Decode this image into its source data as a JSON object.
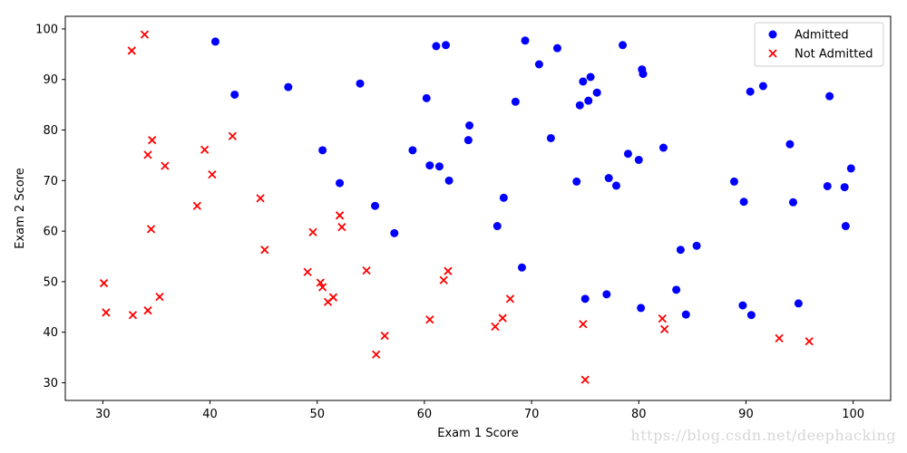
{
  "chart_data": {
    "type": "scatter",
    "xlabel": "Exam 1 Score",
    "ylabel": "Exam 2 Score",
    "xlim": [
      26.5,
      103.5
    ],
    "ylim": [
      26.5,
      102.5
    ],
    "xticks": [
      30,
      40,
      50,
      60,
      70,
      80,
      90,
      100
    ],
    "yticks": [
      30,
      40,
      50,
      60,
      70,
      80,
      90,
      100
    ],
    "grid": false,
    "legend_position": "top-right",
    "series": [
      {
        "name": "Admitted",
        "marker": "circle",
        "color": "#0000ff",
        "points": [
          [
            40.5,
            97.5
          ],
          [
            42.3,
            87.0
          ],
          [
            47.3,
            88.5
          ],
          [
            50.5,
            76.0
          ],
          [
            52.1,
            69.5
          ],
          [
            54.0,
            89.2
          ],
          [
            55.4,
            65.0
          ],
          [
            57.2,
            59.6
          ],
          [
            58.9,
            76.0
          ],
          [
            60.2,
            86.3
          ],
          [
            60.5,
            73.0
          ],
          [
            61.1,
            96.6
          ],
          [
            61.4,
            72.8
          ],
          [
            62.0,
            96.8
          ],
          [
            62.3,
            70.0
          ],
          [
            64.1,
            78.0
          ],
          [
            64.2,
            80.9
          ],
          [
            66.8,
            61.0
          ],
          [
            67.4,
            66.6
          ],
          [
            68.5,
            85.6
          ],
          [
            69.1,
            52.8
          ],
          [
            69.4,
            97.7
          ],
          [
            70.7,
            93.0
          ],
          [
            71.8,
            78.4
          ],
          [
            72.4,
            96.2
          ],
          [
            74.2,
            69.8
          ],
          [
            74.5,
            84.9
          ],
          [
            74.8,
            89.6
          ],
          [
            75.0,
            46.6
          ],
          [
            75.3,
            85.8
          ],
          [
            75.5,
            90.5
          ],
          [
            76.1,
            87.4
          ],
          [
            77.0,
            47.5
          ],
          [
            77.2,
            70.5
          ],
          [
            77.9,
            69.0
          ],
          [
            78.5,
            96.8
          ],
          [
            79.0,
            75.3
          ],
          [
            80.0,
            74.1
          ],
          [
            80.2,
            44.8
          ],
          [
            80.3,
            92.0
          ],
          [
            80.4,
            91.1
          ],
          [
            82.3,
            76.5
          ],
          [
            83.5,
            48.4
          ],
          [
            83.9,
            56.3
          ],
          [
            84.4,
            43.5
          ],
          [
            85.4,
            57.1
          ],
          [
            88.9,
            69.8
          ],
          [
            89.7,
            45.3
          ],
          [
            89.8,
            65.8
          ],
          [
            90.4,
            87.6
          ],
          [
            90.5,
            43.4
          ],
          [
            91.6,
            88.7
          ],
          [
            94.1,
            77.2
          ],
          [
            94.4,
            65.7
          ],
          [
            94.9,
            45.7
          ],
          [
            97.6,
            68.9
          ],
          [
            97.8,
            86.7
          ],
          [
            99.2,
            68.7
          ],
          [
            99.3,
            61.0
          ],
          [
            99.8,
            72.4
          ]
        ]
      },
      {
        "name": "Not Admitted",
        "marker": "x",
        "color": "#ff0000",
        "points": [
          [
            30.1,
            49.7
          ],
          [
            30.3,
            43.9
          ],
          [
            32.7,
            95.7
          ],
          [
            32.8,
            43.4
          ],
          [
            33.9,
            98.9
          ],
          [
            34.2,
            75.1
          ],
          [
            34.2,
            44.3
          ],
          [
            34.5,
            60.4
          ],
          [
            34.6,
            78.0
          ],
          [
            35.3,
            47.0
          ],
          [
            35.8,
            72.9
          ],
          [
            38.8,
            65.0
          ],
          [
            39.5,
            76.1
          ],
          [
            40.2,
            71.2
          ],
          [
            42.1,
            78.8
          ],
          [
            44.7,
            66.5
          ],
          [
            45.1,
            56.3
          ],
          [
            49.1,
            51.9
          ],
          [
            49.6,
            59.8
          ],
          [
            50.3,
            49.8
          ],
          [
            50.5,
            48.9
          ],
          [
            51.0,
            46.0
          ],
          [
            51.5,
            46.9
          ],
          [
            52.1,
            63.1
          ],
          [
            52.3,
            60.8
          ],
          [
            54.6,
            52.2
          ],
          [
            55.5,
            35.6
          ],
          [
            56.3,
            39.3
          ],
          [
            60.5,
            42.5
          ],
          [
            61.8,
            50.3
          ],
          [
            62.2,
            52.1
          ],
          [
            66.6,
            41.1
          ],
          [
            67.3,
            42.8
          ],
          [
            68.0,
            46.6
          ],
          [
            74.8,
            41.6
          ],
          [
            75.0,
            30.6
          ],
          [
            82.2,
            42.7
          ],
          [
            82.4,
            40.6
          ],
          [
            93.1,
            38.8
          ],
          [
            95.9,
            38.2
          ]
        ]
      }
    ]
  },
  "watermark": "https://blog.csdn.net/deephacking"
}
